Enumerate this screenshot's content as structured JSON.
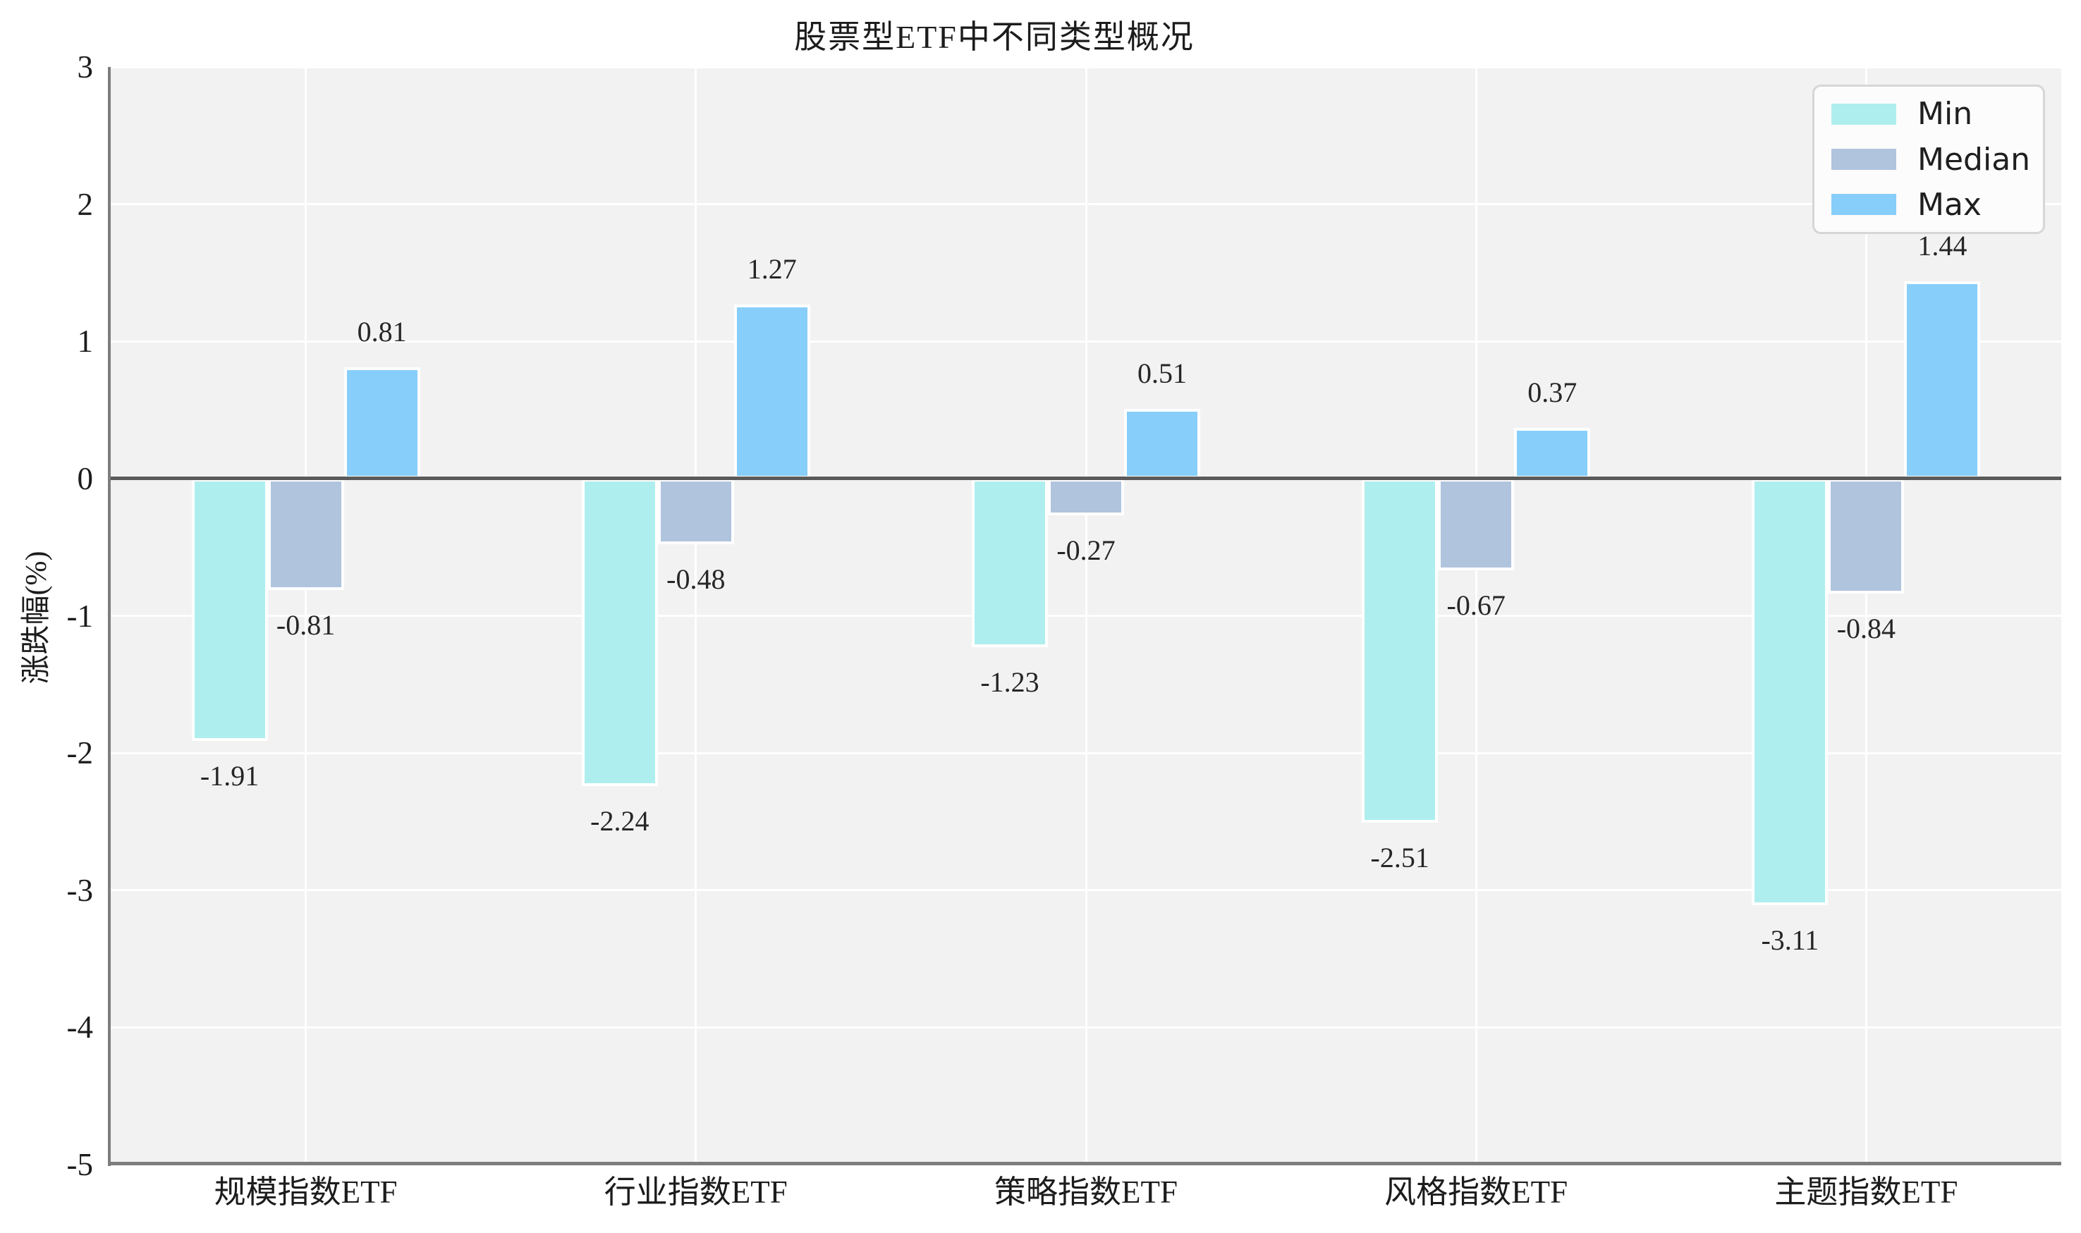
{
  "title": "股票型ETF中不同类型概况",
  "chart_data": {
    "type": "bar",
    "title": "股票型ETF中不同类型概况",
    "xlabel": "",
    "ylabel": "涨跌幅(%)",
    "categories": [
      "规模指数ETF",
      "行业指数ETF",
      "策略指数ETF",
      "风格指数ETF",
      "主题指数ETF"
    ],
    "series": [
      {
        "name": "Min",
        "color": "#AFEEEE",
        "values": [
          -1.91,
          -2.24,
          -1.23,
          -2.51,
          -3.11
        ]
      },
      {
        "name": "Median",
        "color": "#B0C4DE",
        "values": [
          -0.81,
          -0.48,
          -0.27,
          -0.67,
          -0.84
        ]
      },
      {
        "name": "Max",
        "color": "#87CEFA",
        "values": [
          0.81,
          1.27,
          0.51,
          0.37,
          1.44
        ]
      }
    ],
    "value_labels": [
      "-1.91",
      "-2.24",
      "-1.23",
      "-2.51",
      "-3.11",
      "-0.81",
      "-0.48",
      "-0.27",
      "-0.67",
      "-0.84",
      "0.81",
      "1.27",
      "0.51",
      "0.37",
      "1.44"
    ],
    "ylim": [
      -5,
      3
    ],
    "yticks": [
      "3",
      "2",
      "1",
      "0",
      "-1",
      "-2",
      "-3",
      "-4",
      "-5"
    ],
    "grid": true,
    "legend_position": "upper right",
    "plot_background": "#f2f2f2",
    "grid_color": "#ffffff",
    "zero_line_color": "#5a5a5a",
    "spine_color": "#7d7d7d"
  }
}
